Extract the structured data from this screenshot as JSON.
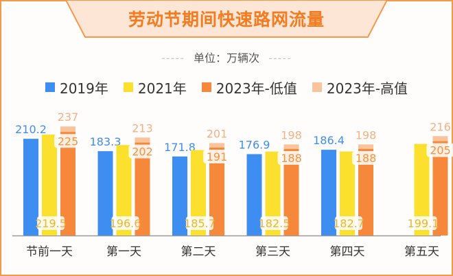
{
  "title": "劳动节期间快速路网流量",
  "unit_text": "单位：万辆次",
  "unit_dashes": "-----",
  "colors": {
    "accent": "#f47b20",
    "frame": "#f39a4a",
    "banner_fill": "#fde6d6",
    "baseline": "#9a9a9a"
  },
  "chart_data": {
    "type": "bar",
    "title": "劳动节期间快速路网流量",
    "ylabel": "单位：万辆次",
    "ylim": [
      0,
      260
    ],
    "grid": false,
    "legend_position": "top",
    "categories": [
      "节前一天",
      "第一天",
      "第二天",
      "第三天",
      "第四天",
      "第五天"
    ],
    "series": [
      {
        "name": "2019年",
        "color": "#3d8ef0",
        "values": [
          210.2,
          183.3,
          171.8,
          176.9,
          186.4,
          null
        ]
      },
      {
        "name": "2021年",
        "color": "#fbe02e",
        "values": [
          219.5,
          196.6,
          185.7,
          182.5,
          182.7,
          199.1
        ]
      },
      {
        "name": "2023年-低值",
        "color": "#f5883a",
        "values": [
          225,
          202,
          191,
          188,
          188,
          205
        ]
      },
      {
        "name": "2023年-高值",
        "color": "#f9c39b",
        "values": [
          237,
          213,
          201,
          198,
          198,
          216
        ]
      }
    ]
  }
}
